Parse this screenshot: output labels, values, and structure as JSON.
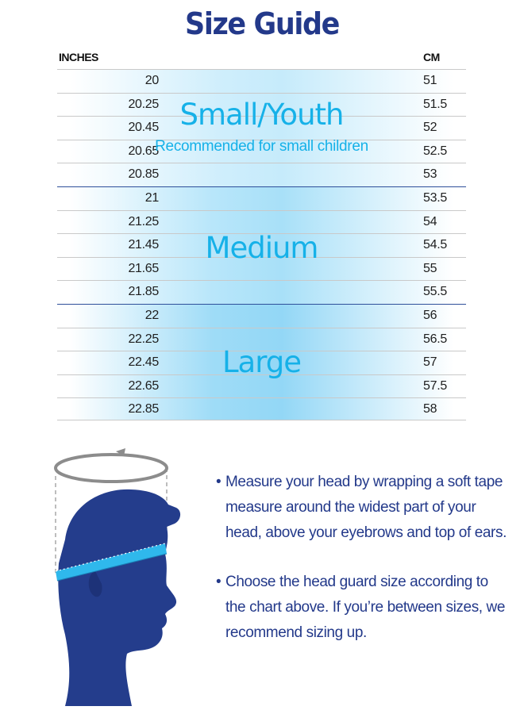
{
  "title": "Size Guide",
  "columns": {
    "left": "INCHES",
    "right": "CM"
  },
  "groups": [
    {
      "name": "Small/Youth",
      "subtitle": "Recommended for small children"
    },
    {
      "name": "Medium"
    },
    {
      "name": "Large"
    }
  ],
  "rows": [
    {
      "in": "20",
      "cm": "51"
    },
    {
      "in": "20.25",
      "cm": "51.5"
    },
    {
      "in": "20.45",
      "cm": "52"
    },
    {
      "in": "20.65",
      "cm": "52.5"
    },
    {
      "in": "20.85",
      "cm": "53"
    },
    {
      "in": "21",
      "cm": "53.5"
    },
    {
      "in": "21.25",
      "cm": "54"
    },
    {
      "in": "21.45",
      "cm": "54.5"
    },
    {
      "in": "21.65",
      "cm": "55"
    },
    {
      "in": "21.85",
      "cm": "55.5"
    },
    {
      "in": "22",
      "cm": "56"
    },
    {
      "in": "22.25",
      "cm": "56.5"
    },
    {
      "in": "22.45",
      "cm": "57"
    },
    {
      "in": "22.65",
      "cm": "57.5"
    },
    {
      "in": "22.85",
      "cm": "58"
    }
  ],
  "instructions": [
    "Measure your head by wrapping a soft tape measure around the widest part of your head, above your eyebrows and top of ears.",
    "Choose the head guard size according to the chart above. If you’re between sizes, we recommend sizing up."
  ],
  "bullet_char": "•",
  "colors": {
    "title": "#23398a",
    "accent": "#16b1e8",
    "head": "#243d8c",
    "tape": "#2fb8ec"
  }
}
